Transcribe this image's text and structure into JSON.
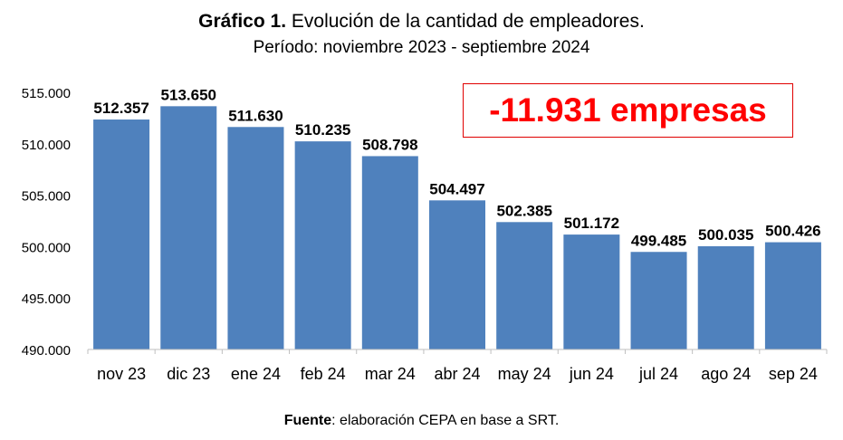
{
  "chart_data": {
    "type": "bar",
    "title_bold": "Gráfico 1.",
    "title": "Evolución de la cantidad de empleadores.",
    "subtitle": "Período: noviembre 2023 - septiembre 2024",
    "categories": [
      "nov 23",
      "dic 23",
      "ene 24",
      "feb 24",
      "mar 24",
      "abr 24",
      "may 24",
      "jun 24",
      "jul 24",
      "ago 24",
      "sep 24"
    ],
    "values": [
      512357,
      513650,
      511630,
      510235,
      508798,
      504497,
      502385,
      501172,
      499485,
      500035,
      500426
    ],
    "data_labels": [
      "512.357",
      "513.650",
      "511.630",
      "510.235",
      "508.798",
      "504.497",
      "502.385",
      "501.172",
      "499.485",
      "500.035",
      "500.426"
    ],
    "ylim": [
      490000,
      515000
    ],
    "yticks": [
      490000,
      495000,
      500000,
      505000,
      510000,
      515000
    ],
    "ytick_labels": [
      "490.000",
      "495.000",
      "500.000",
      "505.000",
      "510.000",
      "515.000"
    ],
    "grid": false,
    "bar_color": "#4f81bd",
    "annotation": "-11.931 empresas",
    "annotation_color": "#ff0000",
    "source_bold": "Fuente",
    "source": ": elaboración CEPA en base a SRT."
  }
}
